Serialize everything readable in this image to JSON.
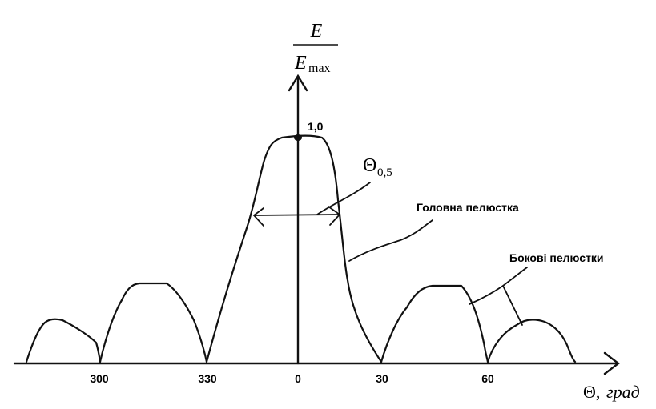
{
  "yaxis": {
    "numerator": "E",
    "denominator": "E",
    "denominator_sub": "max"
  },
  "xaxis": {
    "label_symbol": "Θ,",
    "label_unit": "град",
    "ticks": [
      "300",
      "330",
      "0",
      "30",
      "60"
    ]
  },
  "peak_label": "1,0",
  "beamwidth": {
    "symbol": "Θ",
    "subscript": "0,5"
  },
  "annotations": {
    "main_lobe": "Головна пелюстка",
    "side_lobes": "Бокові пелюстки"
  }
}
